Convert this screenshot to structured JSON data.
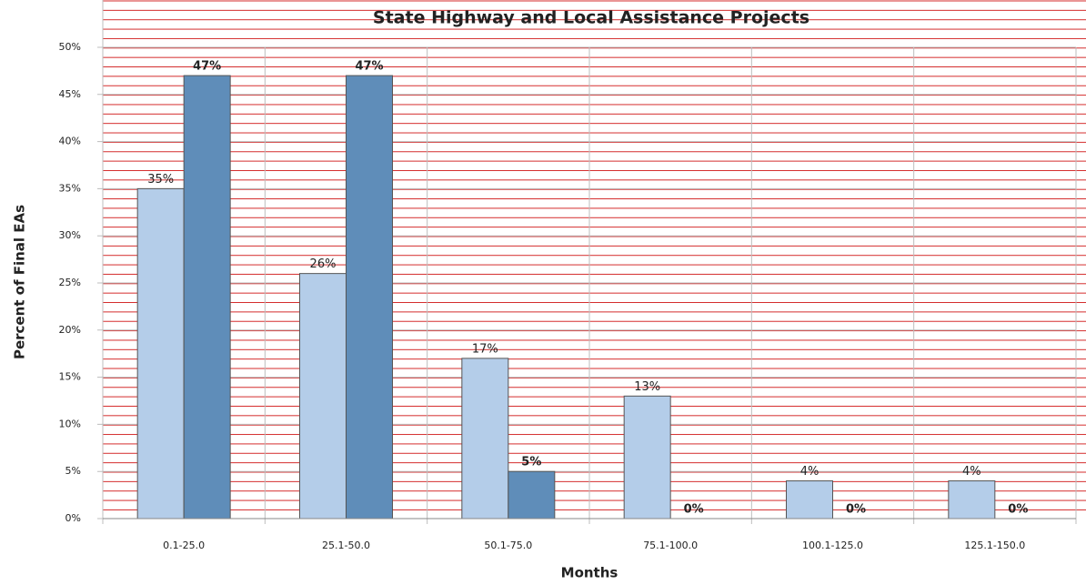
{
  "chart_data": {
    "type": "bar",
    "title": "State Highway and Local Assistance Projects",
    "x_label": "Months",
    "y_label": "Percent of Final EAs",
    "categories": [
      "0.1-25.0",
      "25.1-50.0",
      "50.1-75.0",
      "75.1-100.0",
      "100.1-125.0",
      "125.1-150.0"
    ],
    "series": [
      {
        "color": "#b4cde9",
        "values": [
          35,
          26,
          17,
          13,
          4,
          4
        ],
        "value_labels": [
          "35%",
          "26%",
          "17%",
          "13%",
          "4%",
          "4%"
        ]
      },
      {
        "color": "#5f8db9",
        "values": [
          47,
          47,
          5,
          0,
          0,
          0
        ],
        "value_labels": [
          "47%",
          "47%",
          "5%",
          "0%",
          "0%",
          "0%"
        ]
      }
    ],
    "ylim": [
      0,
      50
    ],
    "yticks": [
      {
        "value": 0,
        "label": "0%"
      },
      {
        "value": 5,
        "label": "5%"
      },
      {
        "value": 10,
        "label": "10%"
      },
      {
        "value": 15,
        "label": "15%"
      },
      {
        "value": 20,
        "label": "20%"
      },
      {
        "value": 25,
        "label": "25%"
      },
      {
        "value": 30,
        "label": "30%"
      },
      {
        "value": 35,
        "label": "35%"
      },
      {
        "value": 40,
        "label": "40%"
      },
      {
        "value": 45,
        "label": "45%"
      },
      {
        "value": 50,
        "label": "50%"
      }
    ],
    "grid": true
  }
}
